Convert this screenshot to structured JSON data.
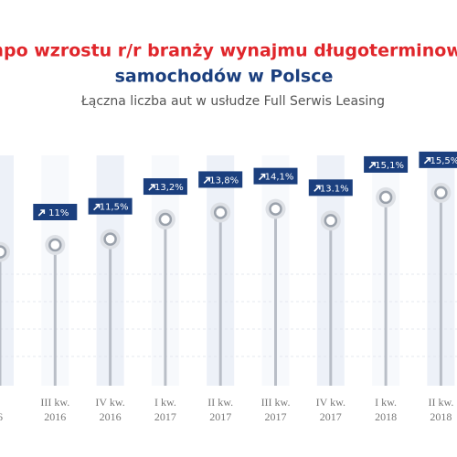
{
  "chart_data": {
    "type": "lollipop",
    "title": "mpo wzrostu r/r branży wynajmu długoterminow",
    "title_line2": "samochodów w Polsce",
    "subtitle": "Łączna liczba aut w usłudze Full Serwis Leasing",
    "quarters": [
      null,
      "III kw.",
      "IV kw.",
      "I kw.",
      "II kw.",
      "III kw.",
      "IV kw.",
      "I kw.",
      "II kw."
    ],
    "years": [
      "6",
      "2016",
      "2016",
      "2017",
      "2017",
      "2017",
      "2017",
      "2018",
      "2018"
    ],
    "values": [
      10.4,
      11,
      11.5,
      13.2,
      13.8,
      14.1,
      13.1,
      15.1,
      15.5
    ],
    "value_labels": [
      null,
      "11%",
      "11,5%",
      "13,2%",
      "13,8%",
      "14,1%",
      "13.1%",
      "15,1%",
      "15,5%"
    ],
    "color": "#1b3f7e",
    "title_color": "#e0262b"
  }
}
